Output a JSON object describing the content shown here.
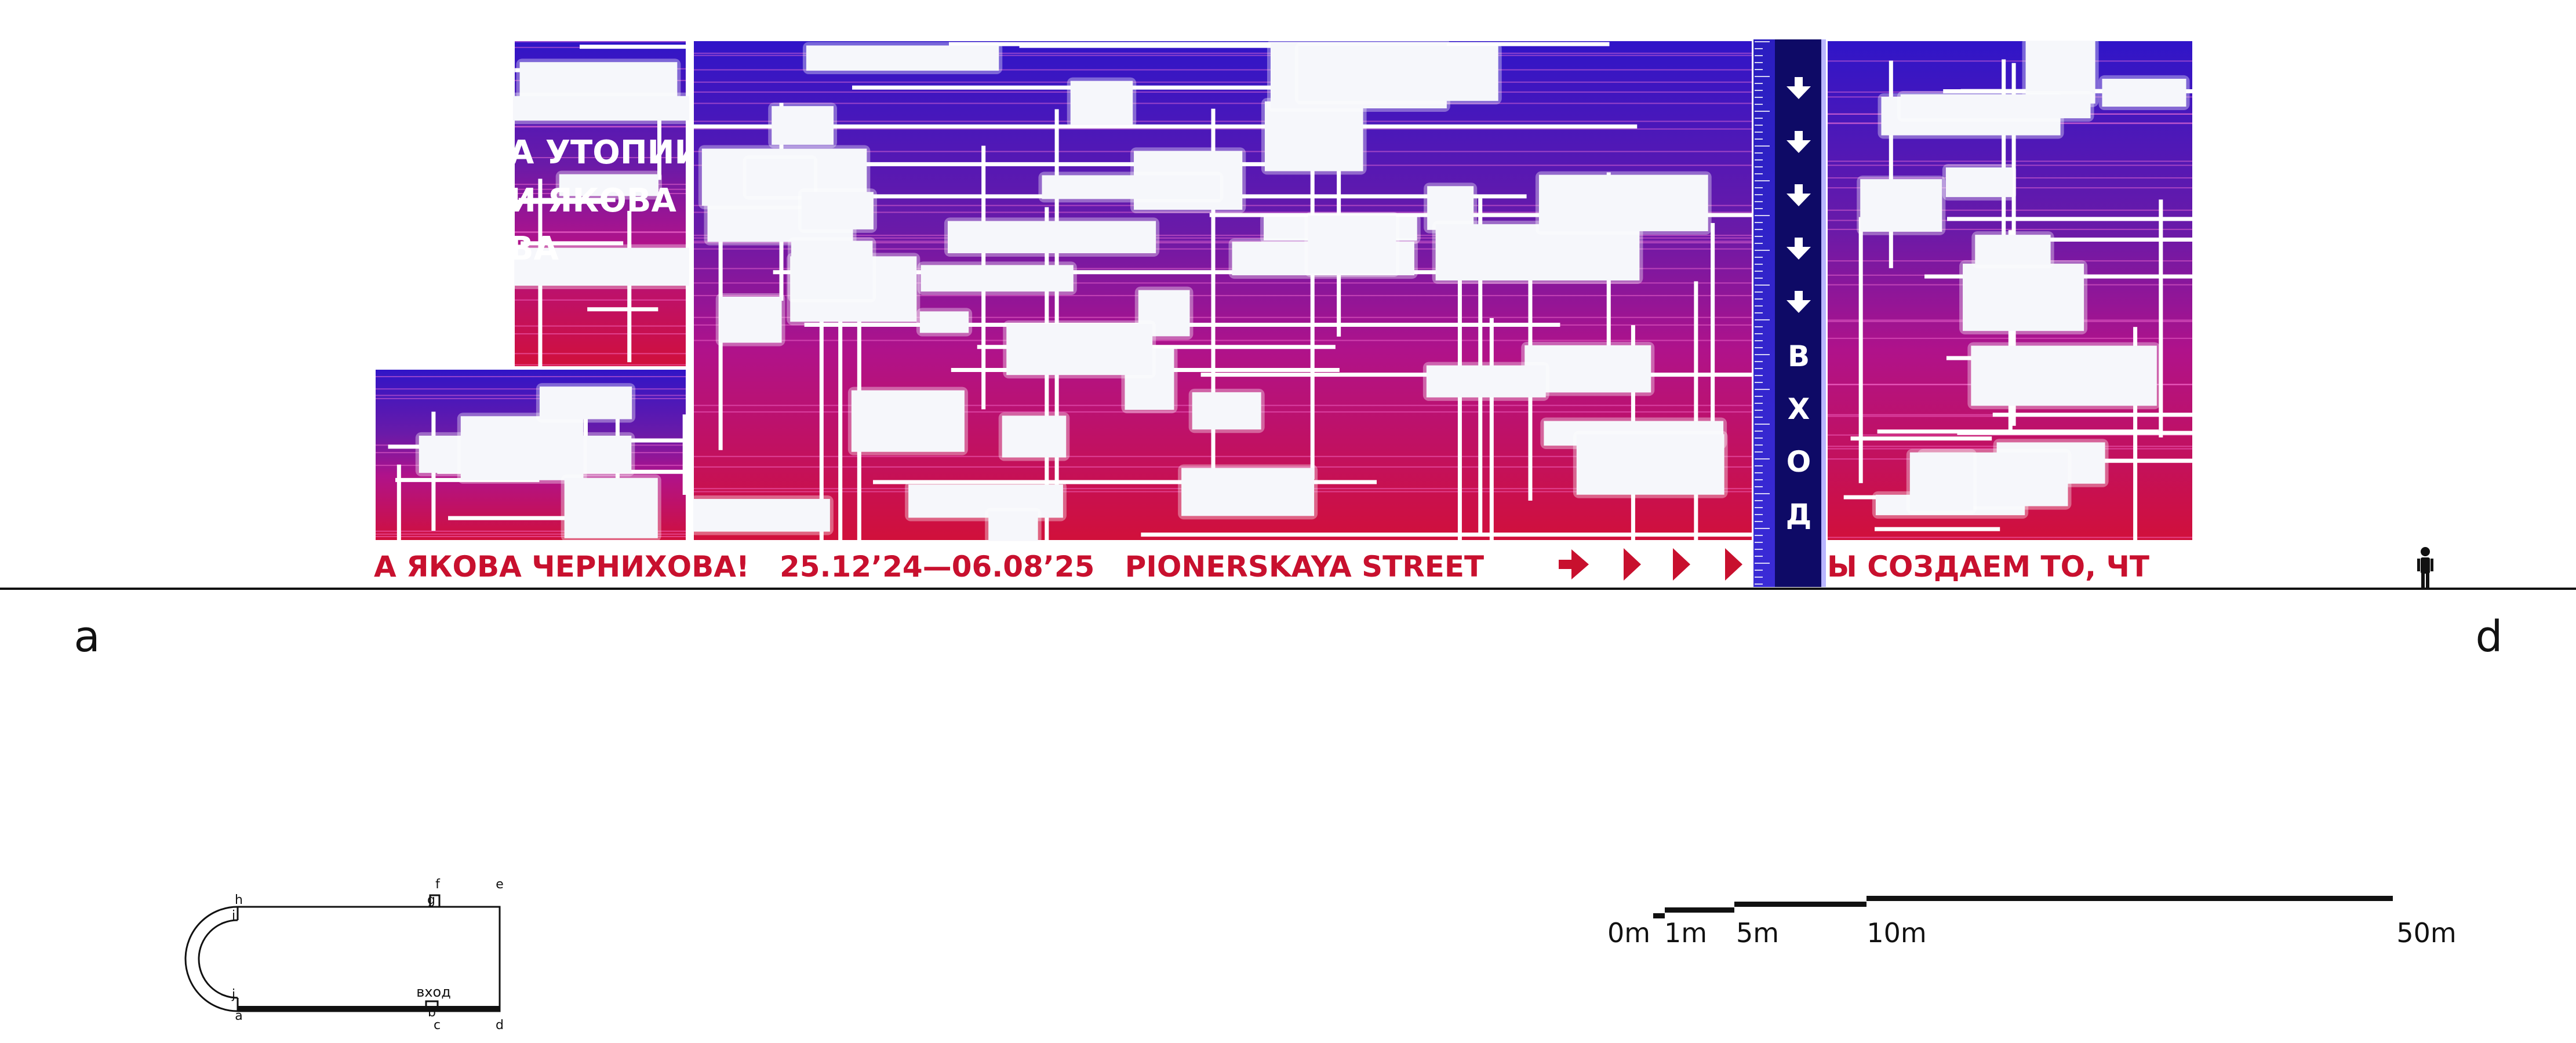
{
  "facade": {
    "banner_text": "А ЯКОВА ЧЕРНИХОВА!   25.12’24—06.08’25   PIONERSKAYA STREET",
    "banner_text_right": "Ы СОЗДАЕМ ТО, ЧТ",
    "headline": [
      "А УТОПИИ:",
      "И ЯКОВА",
      "ВА"
    ],
    "entrance_letters": [
      "В",
      "Х",
      "О",
      "Д"
    ],
    "arrow_glyph": "⬇",
    "colors": {
      "top": "#3b17c8",
      "mid": "#8a1e9a",
      "bottom": "#d1103a",
      "banner": "#c8102e",
      "white": "#f6f7fb"
    }
  },
  "section_labels": {
    "left": "a",
    "right": "d"
  },
  "plan": {
    "points": [
      "h",
      "f",
      "e",
      "g",
      "i",
      "j",
      "a",
      "b",
      "c",
      "d"
    ],
    "entrance_label": "вход"
  },
  "scale_bar": {
    "ticks": [
      "0m",
      "1m",
      "5m",
      "10m",
      "50m"
    ]
  }
}
